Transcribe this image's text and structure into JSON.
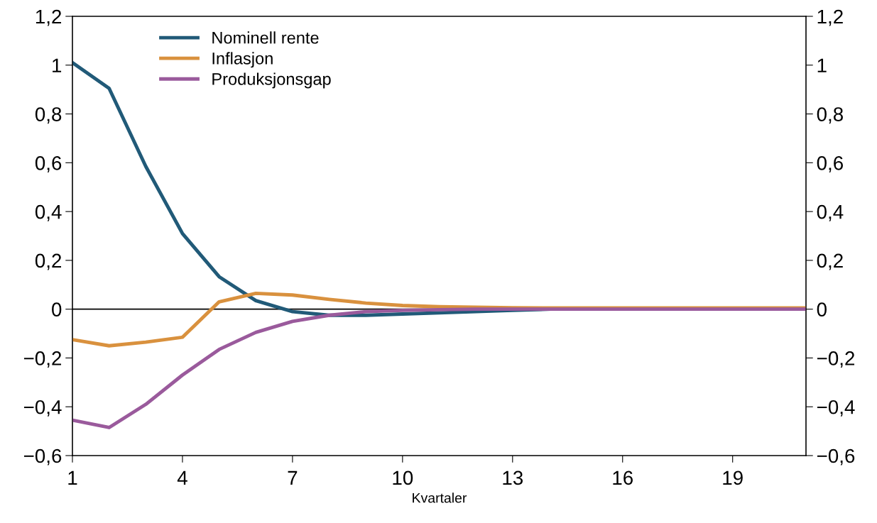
{
  "chart_data": {
    "type": "line",
    "xlabel": "Kvartaler",
    "x": [
      1,
      2,
      3,
      4,
      5,
      6,
      7,
      8,
      9,
      10,
      11,
      12,
      13,
      14,
      15,
      16,
      17,
      18,
      19,
      20,
      21
    ],
    "series": [
      {
        "name": "Nominell rente",
        "color": "#215a78",
        "values": [
          1.01,
          0.905,
          0.585,
          0.31,
          0.133,
          0.035,
          -0.01,
          -0.025,
          -0.025,
          -0.02,
          -0.015,
          -0.01,
          -0.005,
          0,
          null,
          null,
          null,
          null,
          null,
          null,
          null
        ]
      },
      {
        "name": "Inflasjon",
        "color": "#d9913e",
        "values": [
          -0.125,
          -0.15,
          -0.135,
          -0.115,
          0.03,
          0.065,
          0.058,
          0.04,
          0.025,
          0.015,
          0.01,
          0.008,
          0.006,
          0.005,
          0.005,
          0.005,
          0.005,
          0.005,
          0.005,
          0.005,
          0.005
        ]
      },
      {
        "name": "Produksjonsgap",
        "color": "#9a5a9c",
        "values": [
          -0.455,
          -0.485,
          -0.39,
          -0.27,
          -0.165,
          -0.095,
          -0.05,
          -0.025,
          -0.01,
          -0.005,
          -0.002,
          0,
          0,
          0,
          0,
          0,
          0,
          0,
          0,
          0,
          0
        ]
      }
    ],
    "xlim": [
      1,
      21
    ],
    "xticks": [
      1,
      4,
      7,
      10,
      13,
      16,
      19
    ],
    "ylim": [
      -0.6,
      1.2
    ],
    "yticks": [
      {
        "value": -0.6,
        "label": "−0,6"
      },
      {
        "value": -0.4,
        "label": "−0,4"
      },
      {
        "value": -0.2,
        "label": "−0,2"
      },
      {
        "value": 0,
        "label": "0"
      },
      {
        "value": 0.2,
        "label": "0,2"
      },
      {
        "value": 0.4,
        "label": "0,4"
      },
      {
        "value": 0.6,
        "label": "0,6"
      },
      {
        "value": 0.8,
        "label": "0,8"
      },
      {
        "value": 1,
        "label": "1"
      },
      {
        "value": 1.2,
        "label": "1,2"
      }
    ],
    "y2lim": [
      -0.6,
      1.2
    ],
    "y2ticks": [
      {
        "value": -0.6,
        "label": "−0,6"
      },
      {
        "value": -0.4,
        "label": "−0,4"
      },
      {
        "value": -0.2,
        "label": "−0,2"
      },
      {
        "value": 0,
        "label": "0"
      },
      {
        "value": 0.2,
        "label": "0,2"
      },
      {
        "value": 0.4,
        "label": "0,4"
      },
      {
        "value": 0.6,
        "label": "0,6"
      },
      {
        "value": 0.8,
        "label": "0,8"
      },
      {
        "value": 1,
        "label": "1"
      },
      {
        "value": 1.2,
        "label": "1,2"
      }
    ],
    "ref_lines": [
      {
        "axis": "y",
        "value": 0,
        "color": "#000000"
      }
    ],
    "legend": "top left",
    "grid": false
  }
}
